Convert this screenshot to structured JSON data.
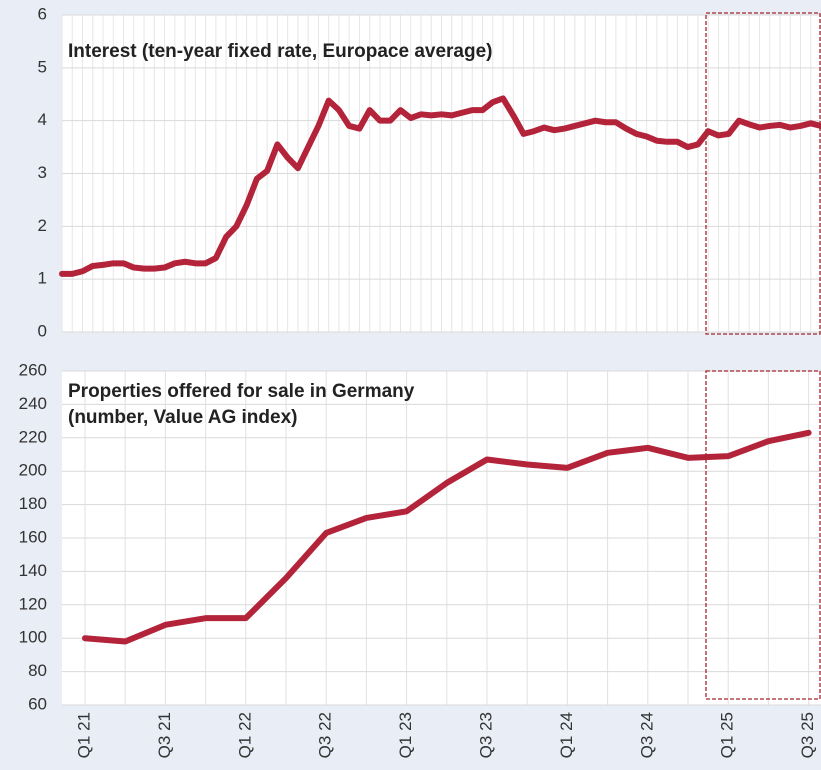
{
  "chart_data": [
    {
      "type": "line",
      "title": [
        "Interest (ten-year fixed rate, Europace average)"
      ],
      "color": "#b3243a",
      "ylim": [
        0,
        6
      ],
      "yticks": [
        0,
        1,
        2,
        3,
        4,
        5,
        6
      ],
      "grid": true,
      "values": [
        1.1,
        1.1,
        1.15,
        1.25,
        1.27,
        1.3,
        1.3,
        1.22,
        1.2,
        1.2,
        1.22,
        1.3,
        1.33,
        1.3,
        1.3,
        1.4,
        1.8,
        2.0,
        2.4,
        2.9,
        3.05,
        3.55,
        3.3,
        3.1,
        3.5,
        3.9,
        4.38,
        4.2,
        3.9,
        3.85,
        4.2,
        4.0,
        4.0,
        4.2,
        4.05,
        4.12,
        4.1,
        4.12,
        4.1,
        4.15,
        4.2,
        4.2,
        4.35,
        4.42,
        4.1,
        3.75,
        3.8,
        3.87,
        3.82,
        3.85,
        3.9,
        3.95,
        4.0,
        3.97,
        3.97,
        3.85,
        3.75,
        3.7,
        3.62,
        3.6,
        3.6,
        3.5,
        3.55,
        3.8,
        3.72,
        3.75,
        4.0,
        3.93,
        3.87,
        3.9,
        3.92,
        3.87,
        3.9,
        3.95,
        3.9
      ]
    },
    {
      "type": "line",
      "title": [
        "Properties offered for sale in Germany",
        "(number, Value AG index)"
      ],
      "color": "#b3243a",
      "ylim": [
        60,
        260
      ],
      "yticks": [
        60,
        80,
        100,
        120,
        140,
        160,
        180,
        200,
        220,
        240,
        260
      ],
      "grid": true,
      "categories": [
        "Q1 21",
        null,
        "Q3 21",
        null,
        "Q1 22",
        null,
        "Q3 22",
        null,
        "Q1 23",
        null,
        "Q3 23",
        null,
        "Q1 24",
        null,
        "Q3 24",
        null,
        "Q1 25",
        null,
        "Q3 25"
      ],
      "values": [
        100,
        98,
        108,
        112,
        112,
        136,
        163,
        172,
        176,
        193,
        207,
        204,
        202,
        211,
        214,
        208,
        209,
        218,
        223
      ]
    }
  ]
}
